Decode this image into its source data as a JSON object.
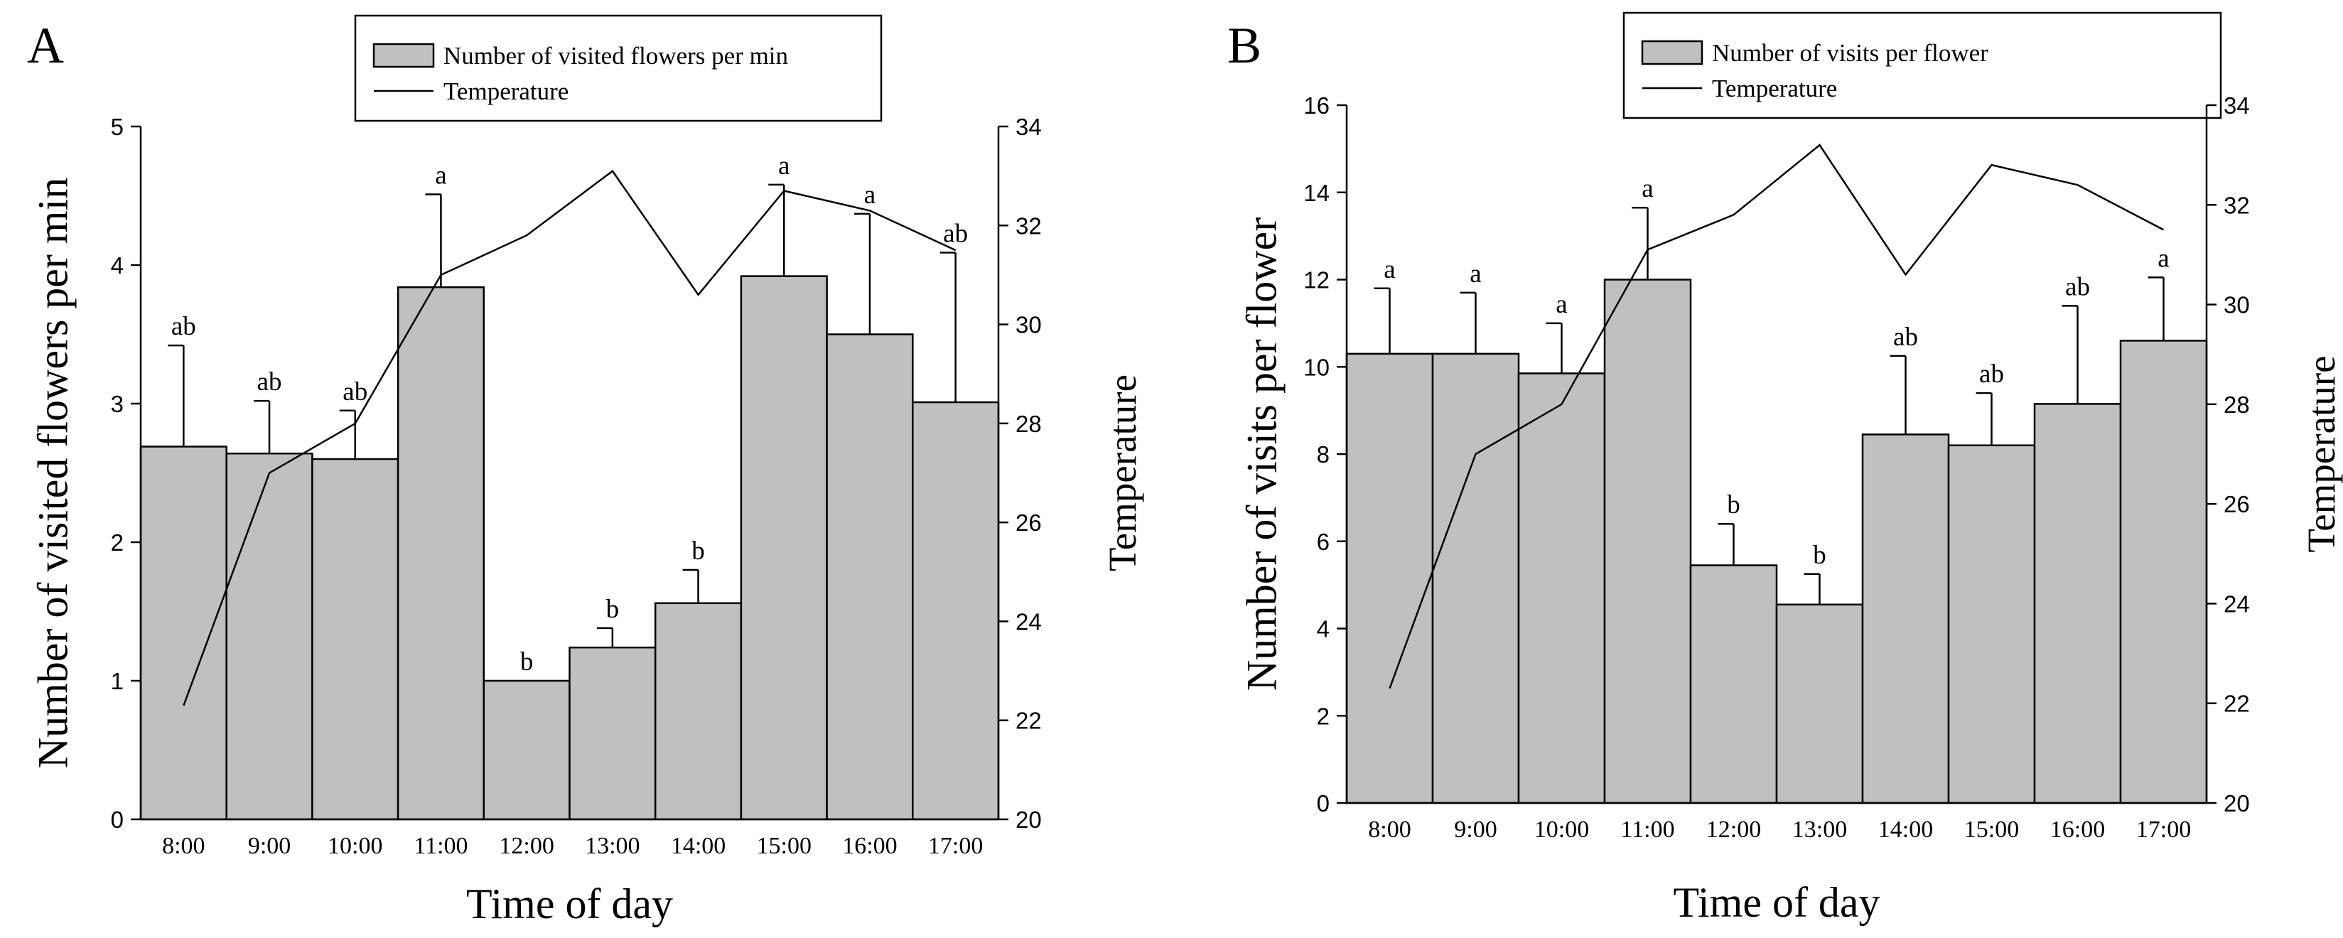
{
  "chart_data": [
    {
      "panel": "A",
      "type": "bar",
      "categories": [
        "8:00",
        "9:00",
        "10:00",
        "11:00",
        "12:00",
        "13:00",
        "14:00",
        "15:00",
        "16:00",
        "17:00"
      ],
      "xlabel": "Time of day",
      "ylabel": "Number of visited flowers per min",
      "ylabel_right": "Temperature",
      "ylim": [
        0,
        5
      ],
      "yticks": [
        0,
        1,
        2,
        3,
        4,
        5
      ],
      "ylim_right": [
        20,
        34
      ],
      "yticks_right": [
        20,
        22,
        24,
        26,
        28,
        30,
        32,
        34
      ],
      "series": [
        {
          "name": "Number of visited flowers per min",
          "type": "bar",
          "axis": "left",
          "values": [
            2.69,
            2.64,
            2.6,
            3.84,
            1.0,
            1.24,
            1.56,
            3.92,
            3.5,
            3.01
          ],
          "error": [
            0.73,
            0.38,
            0.35,
            0.67,
            0.0,
            0.14,
            0.24,
            0.66,
            0.87,
            1.08
          ]
        },
        {
          "name": "Temperature",
          "type": "line",
          "axis": "right",
          "values": [
            22.3,
            27.0,
            28.0,
            31.0,
            31.8,
            33.1,
            30.6,
            32.7,
            32.3,
            31.5
          ]
        }
      ],
      "significance": [
        "ab",
        "ab",
        "ab",
        "a",
        "b",
        "b",
        "b",
        "a",
        "a",
        "ab"
      ],
      "legend_position": "top-center"
    },
    {
      "panel": "B",
      "type": "bar",
      "categories": [
        "8:00",
        "9:00",
        "10:00",
        "11:00",
        "12:00",
        "13:00",
        "14:00",
        "15:00",
        "16:00",
        "17:00"
      ],
      "xlabel": "Time of day",
      "ylabel": "Number of visits per flower",
      "ylabel_right": "Temperature",
      "ylim": [
        0,
        16
      ],
      "yticks": [
        0,
        2,
        4,
        6,
        8,
        10,
        12,
        14,
        16
      ],
      "ylim_right": [
        20,
        34
      ],
      "yticks_right": [
        20,
        22,
        24,
        26,
        28,
        30,
        32,
        34
      ],
      "series": [
        {
          "name": "Number of visits per flower",
          "type": "bar",
          "axis": "left",
          "values": [
            10.3,
            10.3,
            9.85,
            12.0,
            5.45,
            4.55,
            8.45,
            8.2,
            9.15,
            10.6
          ],
          "error": [
            1.5,
            1.4,
            1.15,
            1.65,
            0.95,
            0.7,
            1.8,
            1.2,
            2.25,
            1.45
          ]
        },
        {
          "name": "Temperature",
          "type": "line",
          "axis": "right",
          "values": [
            22.3,
            27.0,
            28.0,
            31.1,
            31.8,
            33.2,
            30.6,
            32.8,
            32.4,
            31.5
          ]
        }
      ],
      "significance": [
        "a",
        "a",
        "a",
        "a",
        "b",
        "b",
        "ab",
        "ab",
        "ab",
        "a"
      ],
      "legend_position": "top-center"
    }
  ]
}
